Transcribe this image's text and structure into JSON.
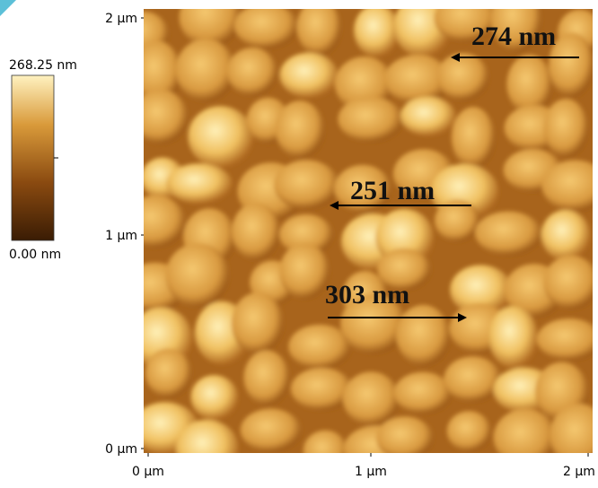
{
  "colorbar": {
    "max_label": "268.25 nm",
    "min_label": "0.00 nm"
  },
  "x_axis": {
    "labels": [
      "0 µm",
      "1 µm",
      "2 µm"
    ]
  },
  "y_axis": {
    "labels": [
      "2 µm",
      "1 µm",
      "0 µm"
    ]
  },
  "annotations": [
    {
      "label": "274 nm"
    },
    {
      "label": "251 nm"
    },
    {
      "label": "303 nm"
    }
  ]
}
